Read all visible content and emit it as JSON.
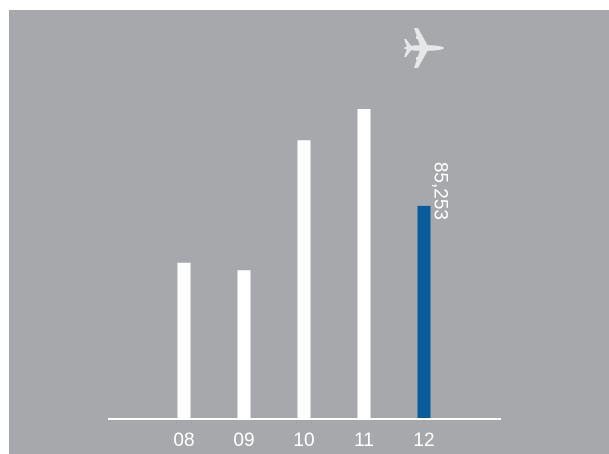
{
  "chart_data": {
    "type": "bar",
    "categories": [
      "08",
      "09",
      "10",
      "11",
      "12"
    ],
    "values": [
      62500,
      59500,
      111500,
      124000,
      85253
    ],
    "highlight_index": 4,
    "data_labels": [
      "",
      "",
      "",
      "",
      "85,253"
    ],
    "title": "",
    "xlabel": "",
    "ylabel": "",
    "ylim": [
      0,
      160000
    ],
    "grid": false,
    "legend": "none",
    "icons": [
      "airplane-icon"
    ],
    "colors": {
      "background": "#a7a8ab",
      "bar": "#ffffff",
      "highlight_bar": "#0b5b9c",
      "axis": "#ffffff",
      "icon": "#e6e7e8"
    }
  }
}
